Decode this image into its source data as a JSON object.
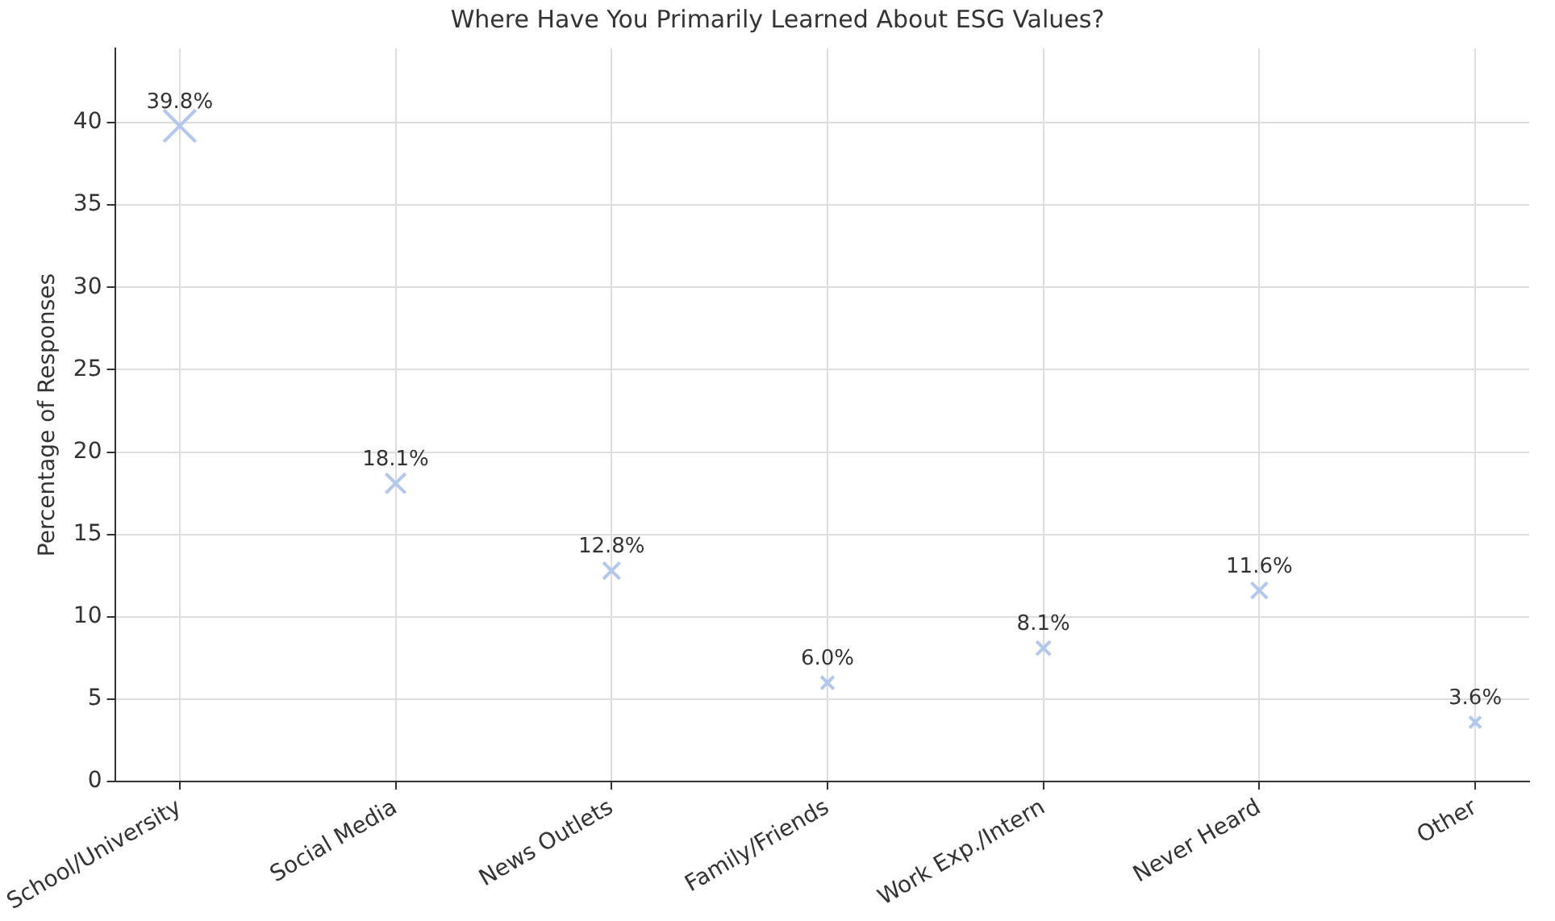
{
  "chart_data": {
    "type": "scatter",
    "title": "Where Have You Primarily Learned About ESG Values?",
    "ylabel": "Percentage of Responses",
    "categories": [
      "School/University",
      "Social Media",
      "News Outlets",
      "Family/Friends",
      "Work Exp./Intern",
      "Never Heard",
      "Other"
    ],
    "values": [
      39.8,
      18.1,
      12.8,
      6.0,
      8.1,
      11.6,
      3.6
    ],
    "value_labels": [
      "39.8%",
      "18.1%",
      "12.8%",
      "6.0%",
      "8.1%",
      "11.6%",
      "3.6%"
    ],
    "color": "#b3c6ec",
    "marker": "cross",
    "grid": true,
    "legend": false,
    "ylim": [
      0,
      44.5
    ],
    "yticks": [
      0,
      5,
      10,
      15,
      20,
      25,
      30,
      35,
      40
    ]
  }
}
